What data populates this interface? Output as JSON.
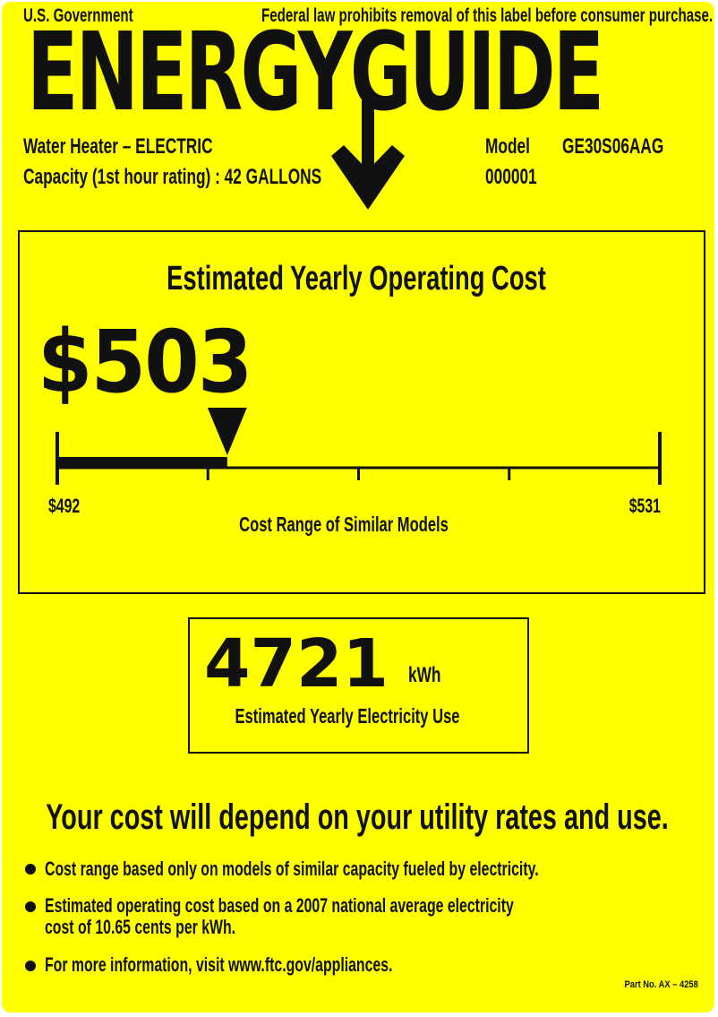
{
  "header": {
    "government": "U.S. Government",
    "notice": "Federal law prohibits removal of this label before consumer purchase.",
    "title": "ENERGYGUIDE"
  },
  "product": {
    "type": "Water Heater – ELECTRIC",
    "capacity": "Capacity (1st hour rating) : 42 GALLONS",
    "model_label": "Model",
    "model_value": "GE30S06AAG",
    "serial": "000001"
  },
  "cost": {
    "heading": "Estimated Yearly Operating Cost",
    "value_text": "$503",
    "value": 503,
    "range_min": 492,
    "range_max": 531,
    "range_min_text": "$492",
    "range_max_text": "$531",
    "range_caption": "Cost Range of Similar Models"
  },
  "usage": {
    "value": "4721",
    "unit": "kWh",
    "caption": "Estimated Yearly Electricity Use"
  },
  "footer": {
    "headline": "Your cost will depend on your utility rates and use.",
    "bullets": [
      "Cost range based only on models of similar capacity fueled by electricity.",
      "Estimated operating cost based on a 2007 national average electricity",
      "cost of 10.65 cents per kWh.",
      "For more information, visit www.ftc.gov/appliances."
    ],
    "part_no": "Part No. AX – 4258"
  },
  "colors": {
    "label_background": "#ffff00",
    "ink": "#111111"
  }
}
